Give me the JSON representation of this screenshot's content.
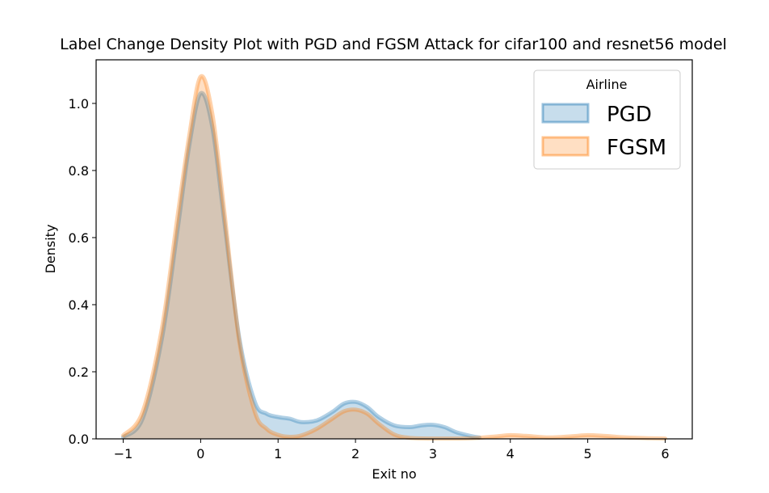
{
  "chart_data": {
    "type": "area",
    "title": "Label Change Density Plot with PGD and FGSM Attack for cifar100 and  resnet56 model",
    "xlabel": "Exit no",
    "ylabel": "Density",
    "xlim": [
      -1.35,
      6.35
    ],
    "ylim": [
      0,
      1.13
    ],
    "xticks": [
      -1,
      0,
      1,
      2,
      3,
      4,
      5,
      6
    ],
    "xtick_labels": [
      "−1",
      "0",
      "1",
      "2",
      "3",
      "4",
      "5",
      "6"
    ],
    "yticks": [
      0.0,
      0.2,
      0.4,
      0.6,
      0.8,
      1.0
    ],
    "ytick_labels": [
      "0.0",
      "0.2",
      "0.4",
      "0.6",
      "0.8",
      "1.0"
    ],
    "grid": false,
    "legend": {
      "title": "Airline",
      "position": "top-right"
    },
    "series": [
      {
        "name": "PGD",
        "color": "#1f77b4",
        "x": [
          -1.0,
          -0.75,
          -0.5,
          -0.3,
          -0.15,
          0.0,
          0.15,
          0.3,
          0.5,
          0.7,
          0.85,
          1.0,
          1.15,
          1.3,
          1.5,
          1.7,
          1.85,
          2.0,
          2.15,
          2.3,
          2.5,
          2.7,
          2.85,
          3.0,
          3.15,
          3.3,
          3.5,
          3.6
        ],
        "y": [
          0.005,
          0.06,
          0.3,
          0.62,
          0.87,
          1.03,
          0.93,
          0.66,
          0.3,
          0.11,
          0.075,
          0.065,
          0.06,
          0.05,
          0.055,
          0.08,
          0.105,
          0.11,
          0.095,
          0.065,
          0.04,
          0.035,
          0.04,
          0.042,
          0.035,
          0.02,
          0.008,
          0.004
        ]
      },
      {
        "name": "FGSM",
        "color": "#ff7f0e",
        "x": [
          -1.0,
          -0.75,
          -0.5,
          -0.3,
          -0.15,
          0.0,
          0.15,
          0.3,
          0.5,
          0.7,
          0.85,
          1.0,
          1.15,
          1.3,
          1.5,
          1.7,
          1.85,
          2.0,
          2.15,
          2.3,
          2.5,
          2.7,
          3.0,
          3.5,
          3.8,
          4.0,
          4.2,
          4.5,
          4.8,
          5.0,
          5.2,
          5.5,
          5.8,
          6.0
        ],
        "y": [
          0.01,
          0.08,
          0.33,
          0.66,
          0.9,
          1.08,
          0.97,
          0.69,
          0.29,
          0.08,
          0.03,
          0.012,
          0.006,
          0.01,
          0.03,
          0.06,
          0.082,
          0.087,
          0.075,
          0.045,
          0.013,
          0.003,
          0.001,
          0.002,
          0.007,
          0.011,
          0.009,
          0.004,
          0.008,
          0.011,
          0.009,
          0.004,
          0.002,
          0.001
        ]
      }
    ]
  }
}
